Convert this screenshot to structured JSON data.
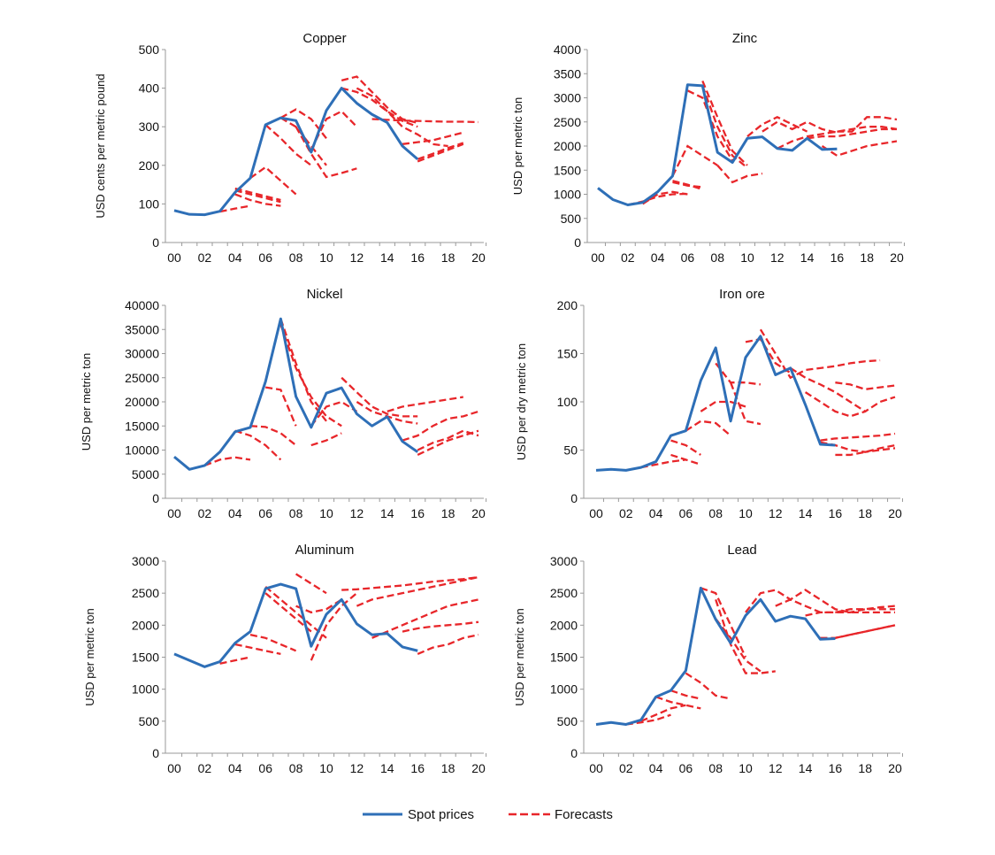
{
  "chart_data": [
    {
      "type": "line",
      "title": "Copper",
      "ylabel": "USD cents per metric pound",
      "ylim": [
        0,
        500
      ],
      "yticks": [
        0,
        100,
        200,
        300,
        400,
        500
      ],
      "xticks": [
        "00",
        "02",
        "04",
        "06",
        "08",
        "10",
        "12",
        "14",
        "16",
        "18",
        "20"
      ],
      "xlim": [
        2000,
        2020
      ],
      "spot": {
        "start": 2000,
        "values": [
          83,
          73,
          72,
          81,
          130,
          167,
          305,
          323,
          316,
          234,
          342,
          400,
          361,
          332,
          311,
          250,
          216
        ]
      },
      "forecasts": [
        {
          "start": 2003,
          "values": [
            80,
            88,
            95
          ]
        },
        {
          "start": 2004,
          "values": [
            125,
            110,
            100,
            95
          ]
        },
        {
          "start": 2004,
          "values": [
            135,
            125,
            115,
            105
          ]
        },
        {
          "start": 2004,
          "values": [
            140,
            130,
            120,
            110
          ]
        },
        {
          "start": 2005,
          "values": [
            167,
            195,
            160,
            125
          ]
        },
        {
          "start": 2006,
          "values": [
            305,
            270,
            230,
            200
          ]
        },
        {
          "start": 2007,
          "values": [
            323,
            300,
            250,
            200
          ]
        },
        {
          "start": 2007,
          "values": [
            323,
            345,
            320,
            270
          ]
        },
        {
          "start": 2008,
          "values": [
            300,
            230,
            170,
            180,
            192
          ]
        },
        {
          "start": 2009,
          "values": [
            240,
            320,
            340,
            300
          ]
        },
        {
          "start": 2011,
          "values": [
            420,
            430,
            390,
            350,
            320,
            310
          ]
        },
        {
          "start": 2011,
          "values": [
            400,
            390,
            370,
            340,
            315,
            300
          ]
        },
        {
          "start": 2012,
          "values": [
            400,
            380,
            340,
            300,
            280,
            255,
            250
          ]
        },
        {
          "start": 2013,
          "values": [
            320,
            318,
            316,
            315,
            314,
            313,
            313,
            312
          ]
        },
        {
          "start": 2015,
          "values": [
            255,
            260,
            265,
            275,
            285
          ]
        },
        {
          "start": 2016,
          "values": [
            216,
            230,
            245,
            258
          ]
        },
        {
          "start": 2016,
          "values": [
            210,
            225,
            240,
            255
          ]
        }
      ]
    },
    {
      "type": "line",
      "title": "Zinc",
      "ylabel": "USD per metric ton",
      "ylim": [
        0,
        4000
      ],
      "yticks": [
        0,
        500,
        1000,
        1500,
        2000,
        2500,
        3000,
        3500,
        4000
      ],
      "xticks": [
        "00",
        "02",
        "04",
        "06",
        "08",
        "10",
        "12",
        "14",
        "16",
        "18",
        "20"
      ],
      "xlim": [
        2000,
        2020
      ],
      "spot": {
        "start": 2000,
        "values": [
          1130,
          890,
          780,
          830,
          1050,
          1380,
          3270,
          3250,
          1870,
          1660,
          2160,
          2190,
          1950,
          1910,
          2160,
          1930,
          1940
        ]
      },
      "forecasts": [
        {
          "start": 2002,
          "values": [
            780,
            850,
            950,
            1000,
            1010
          ]
        },
        {
          "start": 2003,
          "values": [
            800,
            1000,
            1050,
            1000
          ]
        },
        {
          "start": 2005,
          "values": [
            1280,
            1200,
            1100
          ]
        },
        {
          "start": 2005,
          "values": [
            1250,
            1180,
            1150
          ]
        },
        {
          "start": 2005,
          "values": [
            1380,
            2000,
            1800,
            1600
          ]
        },
        {
          "start": 2006,
          "values": [
            3150,
            3000,
            2200,
            1700
          ]
        },
        {
          "start": 2007,
          "values": [
            3350,
            2600,
            1900,
            1600
          ]
        },
        {
          "start": 2007,
          "values": [
            3250,
            2400,
            1800,
            1550
          ]
        },
        {
          "start": 2008,
          "values": [
            1600,
            1250,
            1380,
            1430
          ]
        },
        {
          "start": 2010,
          "values": [
            2200,
            2450,
            2600,
            2450,
            2300
          ]
        },
        {
          "start": 2011,
          "values": [
            2300,
            2500,
            2350,
            2500,
            2350,
            2280
          ]
        },
        {
          "start": 2012,
          "values": [
            1950,
            2100,
            2200,
            2250,
            2300,
            2350,
            2400,
            2400,
            2350
          ]
        },
        {
          "start": 2014,
          "values": [
            2160,
            2200,
            2200,
            2250,
            2300,
            2350,
            2350
          ]
        },
        {
          "start": 2015,
          "values": [
            2000,
            1800,
            1900,
            2000,
            2050,
            2100
          ]
        },
        {
          "start": 2016,
          "values": [
            2300,
            2300,
            2600,
            2600,
            2550
          ]
        }
      ]
    },
    {
      "type": "line",
      "title": "Nickel",
      "ylabel": "USD per metric ton",
      "ylim": [
        0,
        40000
      ],
      "yticks": [
        0,
        5000,
        10000,
        15000,
        20000,
        25000,
        30000,
        35000,
        40000
      ],
      "xticks": [
        "00",
        "02",
        "04",
        "06",
        "08",
        "10",
        "12",
        "14",
        "16",
        "18",
        "20"
      ],
      "xlim": [
        2000,
        2020
      ],
      "spot": {
        "start": 2000,
        "values": [
          8600,
          6000,
          6800,
          9600,
          13800,
          14700,
          24200,
          37200,
          21100,
          14700,
          21800,
          22900,
          17500,
          15000,
          16900,
          11800,
          9600
        ]
      },
      "forecasts": [
        {
          "start": 2002,
          "values": [
            6800,
            8000,
            8500,
            8000
          ]
        },
        {
          "start": 2004,
          "values": [
            14000,
            13000,
            11000,
            8000
          ]
        },
        {
          "start": 2005,
          "values": [
            15000,
            14800,
            13500,
            11000
          ]
        },
        {
          "start": 2006,
          "values": [
            23000,
            22500,
            15000
          ]
        },
        {
          "start": 2007,
          "values": [
            37200,
            28000,
            20000,
            16000
          ]
        },
        {
          "start": 2007,
          "values": [
            36000,
            27000,
            21000,
            17000,
            15000
          ]
        },
        {
          "start": 2009,
          "values": [
            11000,
            12000,
            13500
          ]
        },
        {
          "start": 2009,
          "values": [
            15000,
            19000,
            20000,
            18000
          ]
        },
        {
          "start": 2011,
          "values": [
            25000,
            22000,
            19000,
            17500,
            17000,
            17000
          ]
        },
        {
          "start": 2012,
          "values": [
            20000,
            18000,
            17000,
            16000,
            15500
          ]
        },
        {
          "start": 2014,
          "values": [
            18000,
            19000,
            19500,
            20000,
            20500,
            21000
          ]
        },
        {
          "start": 2015,
          "values": [
            12000,
            13000,
            15000,
            16500,
            17000,
            18000
          ]
        },
        {
          "start": 2016,
          "values": [
            9000,
            10500,
            12000,
            13000,
            14000
          ]
        },
        {
          "start": 2016,
          "values": [
            10000,
            11500,
            12500,
            14000,
            13000
          ]
        }
      ]
    },
    {
      "type": "line",
      "title": "Iron ore",
      "ylabel": "USD per dry metric ton",
      "ylim": [
        0,
        200
      ],
      "yticks": [
        0,
        50,
        100,
        150,
        200
      ],
      "xticks": [
        "00",
        "02",
        "04",
        "06",
        "08",
        "10",
        "12",
        "14",
        "16",
        "18",
        "20"
      ],
      "xlim": [
        2000,
        2020
      ],
      "spot": {
        "start": 2000,
        "values": [
          29,
          30,
          29,
          32,
          38,
          65,
          70,
          122,
          156,
          80,
          146,
          168,
          128,
          135,
          97,
          56,
          55
        ]
      },
      "forecasts": [
        {
          "start": 2003,
          "values": [
            32,
            35,
            38,
            40
          ]
        },
        {
          "start": 2005,
          "values": [
            45,
            40,
            35
          ]
        },
        {
          "start": 2005,
          "values": [
            60,
            55,
            45
          ]
        },
        {
          "start": 2006,
          "values": [
            70,
            80,
            78,
            65
          ]
        },
        {
          "start": 2007,
          "values": [
            90,
            100,
            100,
            95
          ]
        },
        {
          "start": 2008,
          "values": [
            140,
            120,
            120,
            118
          ]
        },
        {
          "start": 2009,
          "values": [
            120,
            80,
            77
          ]
        },
        {
          "start": 2010,
          "values": [
            162,
            165,
            140,
            130
          ]
        },
        {
          "start": 2011,
          "values": [
            175,
            150,
            125,
            133,
            135,
            137,
            140,
            142,
            143
          ]
        },
        {
          "start": 2013,
          "values": [
            135,
            125,
            118,
            110,
            100,
            90
          ]
        },
        {
          "start": 2014,
          "values": [
            110,
            100,
            90,
            85,
            90,
            100,
            105
          ]
        },
        {
          "start": 2015,
          "values": [
            60,
            62,
            63,
            64,
            65,
            67
          ]
        },
        {
          "start": 2016,
          "values": [
            45,
            45,
            48,
            52,
            55
          ]
        },
        {
          "start": 2015,
          "values": [
            58,
            55,
            50,
            48,
            50,
            52
          ]
        },
        {
          "start": 2016,
          "values": [
            120,
            118,
            113,
            115,
            117
          ]
        }
      ]
    },
    {
      "type": "line",
      "title": "Aluminum",
      "ylabel": "USD per metric ton",
      "ylim": [
        0,
        3000
      ],
      "yticks": [
        0,
        500,
        1000,
        1500,
        2000,
        2500,
        3000
      ],
      "xticks": [
        "00",
        "02",
        "04",
        "06",
        "08",
        "10",
        "12",
        "14",
        "16",
        "18",
        "20"
      ],
      "xlim": [
        2000,
        2020
      ],
      "spot": {
        "start": 2000,
        "values": [
          1550,
          1450,
          1350,
          1430,
          1720,
          1900,
          2570,
          2640,
          2570,
          1670,
          2170,
          2400,
          2020,
          1850,
          1870,
          1660,
          1600
        ]
      },
      "forecasts": [
        {
          "start": 2003,
          "values": [
            1400,
            1450,
            1500
          ]
        },
        {
          "start": 2004,
          "values": [
            1700,
            1650,
            1600,
            1550
          ]
        },
        {
          "start": 2005,
          "values": [
            1850,
            1800,
            1700,
            1600
          ]
        },
        {
          "start": 2006,
          "values": [
            2600,
            2400,
            2200,
            2000,
            1800
          ]
        },
        {
          "start": 2006,
          "values": [
            2500,
            2300,
            2100,
            1900
          ]
        },
        {
          "start": 2008,
          "values": [
            2800,
            2650,
            2500
          ]
        },
        {
          "start": 2008,
          "values": [
            2300,
            2200,
            2250,
            2400
          ]
        },
        {
          "start": 2009,
          "values": [
            1450,
            2000,
            2300,
            2500
          ]
        },
        {
          "start": 2011,
          "values": [
            2550,
            2560,
            2580,
            2600,
            2620,
            2650,
            2680,
            2700,
            2720,
            2750
          ]
        },
        {
          "start": 2012,
          "values": [
            2300,
            2400,
            2450,
            2500,
            2550,
            2600,
            2650,
            2700,
            2750
          ]
        },
        {
          "start": 2013,
          "values": [
            1800,
            1900,
            2000,
            2100,
            2200,
            2300,
            2350,
            2400
          ]
        },
        {
          "start": 2015,
          "values": [
            1900,
            1950,
            1980,
            2000,
            2020,
            2050
          ]
        },
        {
          "start": 2016,
          "values": [
            1550,
            1650,
            1700,
            1800,
            1850
          ]
        }
      ]
    },
    {
      "type": "line",
      "title": "Lead",
      "ylabel": "USD per metric ton",
      "ylim": [
        0,
        3000
      ],
      "yticks": [
        0,
        500,
        1000,
        1500,
        2000,
        2500,
        3000
      ],
      "xticks": [
        "00",
        "02",
        "04",
        "06",
        "08",
        "10",
        "12",
        "14",
        "16",
        "18",
        "20"
      ],
      "xlim": [
        2000,
        2020
      ],
      "spot": {
        "start": 2000,
        "values": [
          450,
          480,
          450,
          520,
          880,
          980,
          1290,
          2580,
          2090,
          1720,
          2150,
          2400,
          2060,
          2140,
          2100,
          1780,
          1790
        ]
      },
      "forecasts": [
        {
          "start": 2002,
          "values": [
            450,
            480,
            520,
            600
          ]
        },
        {
          "start": 2003,
          "values": [
            500,
            600,
            700,
            750
          ]
        },
        {
          "start": 2004,
          "values": [
            880,
            800,
            750,
            700
          ]
        },
        {
          "start": 2005,
          "values": [
            980,
            900,
            850
          ]
        },
        {
          "start": 2006,
          "values": [
            1250,
            1100,
            900,
            850
          ]
        },
        {
          "start": 2007,
          "values": [
            2580,
            2500,
            2000,
            1500
          ]
        },
        {
          "start": 2008,
          "values": [
            2100,
            1800,
            1450,
            1280
          ]
        },
        {
          "start": 2008,
          "values": [
            2400,
            1700,
            1250,
            1250,
            1280
          ]
        },
        {
          "start": 2010,
          "values": [
            2200,
            2500,
            2550,
            2400,
            2550,
            2400,
            2250,
            2200,
            2200,
            2200,
            2200
          ]
        },
        {
          "start": 2012,
          "values": [
            2300,
            2400,
            2300,
            2200,
            2200,
            2250,
            2250,
            2280,
            2300
          ]
        },
        {
          "start": 2015,
          "values": [
            1800,
            1800,
            1850,
            1900,
            1950,
            2000
          ]
        },
        {
          "start": 2016,
          "values": [
            1800,
            1850,
            1900,
            1950,
            2000
          ]
        },
        {
          "start": 2014,
          "values": [
            2150,
            2200,
            2200,
            2200,
            2250,
            2250,
            2250
          ]
        }
      ]
    }
  ],
  "legend": {
    "spot_label": "Spot prices",
    "forecast_label": "Forecasts",
    "placement": "bottom"
  },
  "colors": {
    "spot": "#2e6fb7",
    "forecast": "#e8262a",
    "axis": "#999999"
  }
}
